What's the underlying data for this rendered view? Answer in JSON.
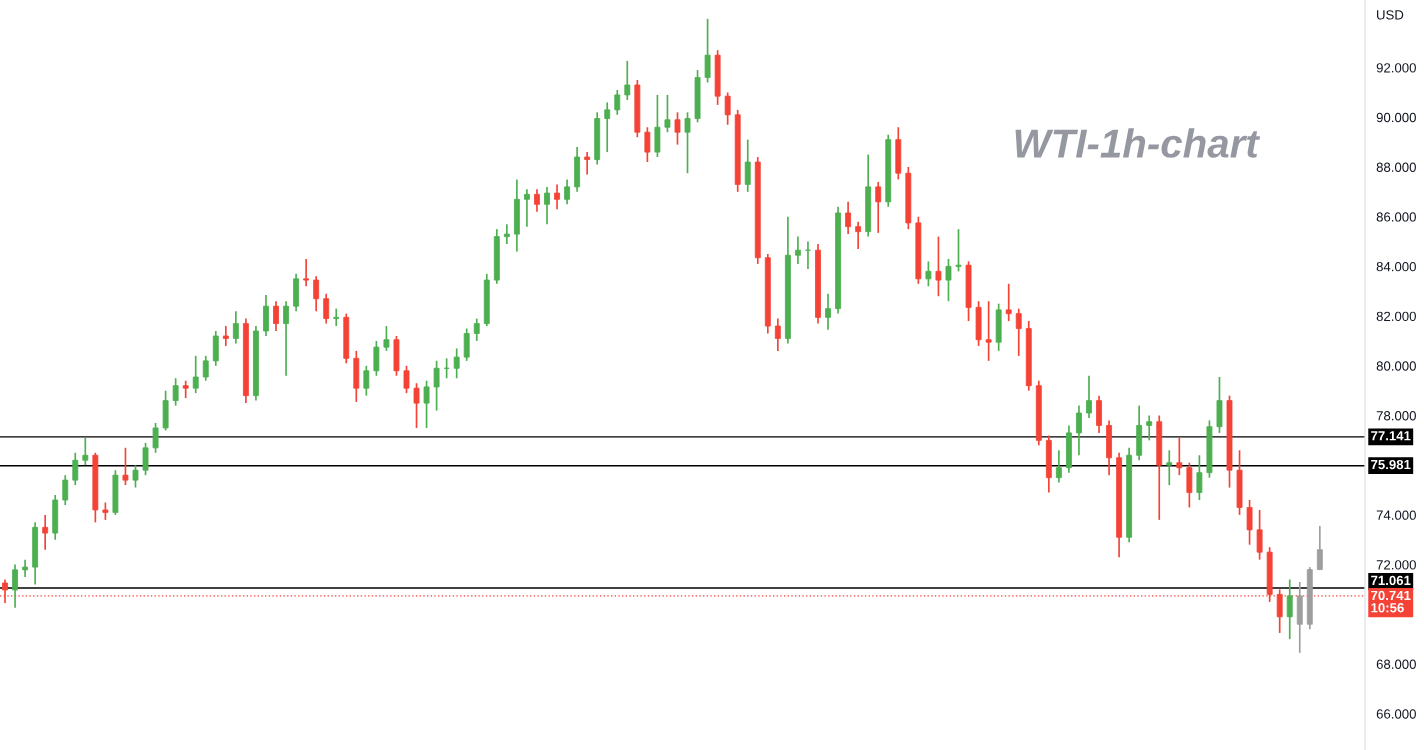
{
  "chart_data": {
    "type": "candlestick",
    "title": "WTI-1h-chart",
    "ylabel": "USD",
    "categories": [
      null,
      null,
      null,
      null,
      null,
      null,
      null,
      null,
      null,
      null,
      null,
      null,
      null,
      null,
      null,
      null,
      null,
      null,
      null,
      null,
      null,
      null,
      null,
      null,
      null,
      null,
      null,
      null,
      null,
      null,
      null,
      null,
      null,
      null,
      null,
      null,
      null,
      null,
      null,
      null,
      null,
      null,
      null,
      null,
      null,
      null,
      null,
      null,
      null,
      null,
      null,
      null,
      null,
      null,
      null,
      null,
      null,
      null,
      null,
      null,
      null,
      null,
      null,
      null,
      null,
      null,
      null,
      null,
      null,
      null,
      null,
      null,
      null,
      null,
      null,
      null,
      null,
      null,
      null,
      null,
      null,
      null,
      null,
      null,
      null,
      null,
      null,
      null,
      null,
      null,
      null,
      null,
      null,
      null,
      null,
      null,
      null,
      null,
      null,
      null,
      null,
      null,
      null,
      null,
      null,
      null,
      null,
      null,
      null,
      null,
      null,
      null,
      null,
      null,
      null,
      null,
      null,
      null,
      null,
      null,
      null,
      null,
      null,
      null,
      null,
      null,
      null,
      null,
      null,
      null,
      null,
      null,
      null,
      null,
      null,
      null
    ],
    "ohlc": [
      [
        71.26,
        71.4,
        70.46,
        70.98
      ],
      [
        70.98,
        72.0,
        70.26,
        71.79
      ],
      [
        71.79,
        72.2,
        71.5,
        71.9
      ],
      [
        71.9,
        73.7,
        71.2,
        73.5
      ],
      [
        73.5,
        74.0,
        72.6,
        73.27
      ],
      [
        73.27,
        74.8,
        73.0,
        74.6
      ],
      [
        74.6,
        75.6,
        74.4,
        75.4
      ],
      [
        75.4,
        76.5,
        75.2,
        76.2
      ],
      [
        76.2,
        77.1,
        76.0,
        76.4
      ],
      [
        76.4,
        76.5,
        73.7,
        74.2
      ],
      [
        74.2,
        74.5,
        73.8,
        74.1
      ],
      [
        74.1,
        75.8,
        74.0,
        75.6
      ],
      [
        75.6,
        76.7,
        75.2,
        75.4
      ],
      [
        75.4,
        76.0,
        75.1,
        75.8
      ],
      [
        75.8,
        76.9,
        75.6,
        76.7
      ],
      [
        76.7,
        77.7,
        76.5,
        77.5
      ],
      [
        77.5,
        79.0,
        77.4,
        78.6
      ],
      [
        78.6,
        79.5,
        78.4,
        79.2
      ],
      [
        79.2,
        79.4,
        78.7,
        79.1
      ],
      [
        79.1,
        80.4,
        78.9,
        79.55
      ],
      [
        79.55,
        80.4,
        79.4,
        80.2
      ],
      [
        80.2,
        81.4,
        80.0,
        81.2
      ],
      [
        81.2,
        81.6,
        80.8,
        81.1
      ],
      [
        81.1,
        82.2,
        80.9,
        81.7
      ],
      [
        81.7,
        81.9,
        78.5,
        78.8
      ],
      [
        78.8,
        81.6,
        78.6,
        81.4
      ],
      [
        81.4,
        82.85,
        81.2,
        82.4
      ],
      [
        82.4,
        82.6,
        81.4,
        81.7
      ],
      [
        81.7,
        82.6,
        79.6,
        82.4
      ],
      [
        82.4,
        83.7,
        82.2,
        83.5
      ],
      [
        83.5,
        84.3,
        83.2,
        83.45
      ],
      [
        83.45,
        83.6,
        82.2,
        82.7
      ],
      [
        82.7,
        82.9,
        81.7,
        81.9
      ],
      [
        81.9,
        82.3,
        81.6,
        81.95
      ],
      [
        81.95,
        82.1,
        80.1,
        80.3
      ],
      [
        80.3,
        80.6,
        78.55,
        79.1
      ],
      [
        79.1,
        80.0,
        78.8,
        79.8
      ],
      [
        79.8,
        81.0,
        79.6,
        80.75
      ],
      [
        80.75,
        81.6,
        80.6,
        81.05
      ],
      [
        81.05,
        81.2,
        79.6,
        79.8
      ],
      [
        79.8,
        80.0,
        78.9,
        79.1
      ],
      [
        79.1,
        79.3,
        77.5,
        78.5
      ],
      [
        78.5,
        79.4,
        77.5,
        79.15
      ],
      [
        79.15,
        80.2,
        78.2,
        79.9
      ],
      [
        79.9,
        80.3,
        79.5,
        79.9
      ],
      [
        79.9,
        80.7,
        79.5,
        80.35
      ],
      [
        80.35,
        81.5,
        80.2,
        81.3
      ],
      [
        81.3,
        81.9,
        81.0,
        81.7
      ],
      [
        81.7,
        83.7,
        81.6,
        83.45
      ],
      [
        83.45,
        85.5,
        83.3,
        85.2
      ],
      [
        85.2,
        85.7,
        84.9,
        85.3
      ],
      [
        85.3,
        87.5,
        84.6,
        86.7
      ],
      [
        86.7,
        87.1,
        85.6,
        86.9
      ],
      [
        86.9,
        87.1,
        86.2,
        86.5
      ],
      [
        86.5,
        87.2,
        85.7,
        86.95
      ],
      [
        86.95,
        87.3,
        86.3,
        86.7
      ],
      [
        86.7,
        87.5,
        86.5,
        87.2
      ],
      [
        87.2,
        88.8,
        87.0,
        88.4
      ],
      [
        88.4,
        88.6,
        87.7,
        88.3
      ],
      [
        88.3,
        90.2,
        88.1,
        89.95
      ],
      [
        89.95,
        90.6,
        88.6,
        90.3
      ],
      [
        90.3,
        91.1,
        90.1,
        90.9
      ],
      [
        90.9,
        92.27,
        90.7,
        91.3
      ],
      [
        91.3,
        91.5,
        89.2,
        89.4
      ],
      [
        89.4,
        89.6,
        88.2,
        88.6
      ],
      [
        88.6,
        90.9,
        88.4,
        89.6
      ],
      [
        89.6,
        90.9,
        89.4,
        89.9
      ],
      [
        89.9,
        90.2,
        88.9,
        89.4
      ],
      [
        89.4,
        90.2,
        87.75,
        89.95
      ],
      [
        89.95,
        91.9,
        89.8,
        91.6
      ],
      [
        91.6,
        93.96,
        91.4,
        92.5
      ],
      [
        92.5,
        92.7,
        90.5,
        90.85
      ],
      [
        90.85,
        91.0,
        89.7,
        90.1
      ],
      [
        90.1,
        90.3,
        87.0,
        87.3
      ],
      [
        87.3,
        89.1,
        87.0,
        88.2
      ],
      [
        88.2,
        88.4,
        84.1,
        84.35
      ],
      [
        84.35,
        84.5,
        81.3,
        81.6
      ],
      [
        81.6,
        81.9,
        80.6,
        81.1
      ],
      [
        81.1,
        86.0,
        80.9,
        84.45
      ],
      [
        84.45,
        85.2,
        84.1,
        84.65
      ],
      [
        84.65,
        85.0,
        83.9,
        84.65
      ],
      [
        84.65,
        84.9,
        81.7,
        81.95
      ],
      [
        81.95,
        82.9,
        81.45,
        82.3
      ],
      [
        82.3,
        86.4,
        82.1,
        86.15
      ],
      [
        86.15,
        86.6,
        85.3,
        85.6
      ],
      [
        85.6,
        85.8,
        84.7,
        85.4
      ],
      [
        85.4,
        88.5,
        85.2,
        87.2
      ],
      [
        87.2,
        87.4,
        85.35,
        86.6
      ],
      [
        86.6,
        89.3,
        86.4,
        89.1
      ],
      [
        89.1,
        89.6,
        87.5,
        87.75
      ],
      [
        87.75,
        88.0,
        85.5,
        85.75
      ],
      [
        85.75,
        86.0,
        83.3,
        83.5
      ],
      [
        83.5,
        84.2,
        83.2,
        83.8
      ],
      [
        83.8,
        85.2,
        82.8,
        83.45
      ],
      [
        83.45,
        84.3,
        82.6,
        84.0
      ],
      [
        84.0,
        85.5,
        83.8,
        84.05
      ],
      [
        84.05,
        84.2,
        81.8,
        82.35
      ],
      [
        82.35,
        82.6,
        80.8,
        81.05
      ],
      [
        81.05,
        82.6,
        80.2,
        80.95
      ],
      [
        80.95,
        82.5,
        80.6,
        82.25
      ],
      [
        82.25,
        83.3,
        81.8,
        82.1
      ],
      [
        82.1,
        82.3,
        80.4,
        81.5
      ],
      [
        81.5,
        81.8,
        79.0,
        79.2
      ],
      [
        79.2,
        79.4,
        76.8,
        77.0
      ],
      [
        77.0,
        77.2,
        74.9,
        75.5
      ],
      [
        75.5,
        76.6,
        75.3,
        75.9
      ],
      [
        75.9,
        77.6,
        75.7,
        77.3
      ],
      [
        77.3,
        78.4,
        76.4,
        78.1
      ],
      [
        78.1,
        79.6,
        77.9,
        78.6
      ],
      [
        78.6,
        78.8,
        77.3,
        77.6
      ],
      [
        77.6,
        77.8,
        75.6,
        76.3
      ],
      [
        76.3,
        76.5,
        72.3,
        73.1
      ],
      [
        73.1,
        76.7,
        72.9,
        76.4
      ],
      [
        76.4,
        78.4,
        76.2,
        77.6
      ],
      [
        77.6,
        78.0,
        77.0,
        77.75
      ],
      [
        77.75,
        78.0,
        73.8,
        76.0
      ],
      [
        76.0,
        76.6,
        75.2,
        76.1
      ],
      [
        76.1,
        77.1,
        75.6,
        75.9
      ],
      [
        75.9,
        76.1,
        74.3,
        74.9
      ],
      [
        74.9,
        76.4,
        74.6,
        75.7
      ],
      [
        75.7,
        77.8,
        75.5,
        77.55
      ],
      [
        77.55,
        79.55,
        77.3,
        78.6
      ],
      [
        78.6,
        78.8,
        75.1,
        75.8
      ],
      [
        75.8,
        76.6,
        74.0,
        74.3
      ],
      [
        74.3,
        74.6,
        72.8,
        73.4
      ],
      [
        73.4,
        74.2,
        72.2,
        72.5
      ],
      [
        72.5,
        72.7,
        70.5,
        70.8
      ],
      [
        70.8,
        71.0,
        69.25,
        69.9
      ],
      [
        69.9,
        71.4,
        69.0,
        70.741
      ],
      [
        70.741,
        71.3,
        68.45,
        69.6
      ],
      [
        69.6,
        71.9,
        69.4,
        71.8
      ],
      [
        71.8,
        73.55,
        71.8,
        72.6
      ],
      null,
      null,
      null,
      null
    ],
    "colors": [
      "#f44336",
      "#4caf50",
      "#4caf50",
      "#4caf50",
      "#f44336",
      "#4caf50",
      "#4caf50",
      "#4caf50",
      "#4caf50",
      "#f44336",
      "#f44336",
      "#4caf50",
      "#f44336",
      "#4caf50",
      "#4caf50",
      "#4caf50",
      "#4caf50",
      "#4caf50",
      "#f44336",
      "#4caf50",
      "#4caf50",
      "#4caf50",
      "#f44336",
      "#4caf50",
      "#f44336",
      "#4caf50",
      "#4caf50",
      "#f44336",
      "#4caf50",
      "#4caf50",
      "#f44336",
      "#f44336",
      "#f44336",
      "#4caf50",
      "#f44336",
      "#f44336",
      "#4caf50",
      "#4caf50",
      "#4caf50",
      "#f44336",
      "#f44336",
      "#f44336",
      "#4caf50",
      "#4caf50",
      "#4caf50",
      "#4caf50",
      "#4caf50",
      "#4caf50",
      "#4caf50",
      "#4caf50",
      "#4caf50",
      "#4caf50",
      "#4caf50",
      "#f44336",
      "#4caf50",
      "#f44336",
      "#4caf50",
      "#4caf50",
      "#f44336",
      "#4caf50",
      "#4caf50",
      "#4caf50",
      "#4caf50",
      "#f44336",
      "#f44336",
      "#4caf50",
      "#4caf50",
      "#f44336",
      "#4caf50",
      "#4caf50",
      "#4caf50",
      "#f44336",
      "#f44336",
      "#f44336",
      "#4caf50",
      "#f44336",
      "#f44336",
      "#f44336",
      "#4caf50",
      "#4caf50",
      "#4caf50",
      "#f44336",
      "#4caf50",
      "#4caf50",
      "#f44336",
      "#f44336",
      "#4caf50",
      "#f44336",
      "#4caf50",
      "#f44336",
      "#f44336",
      "#f44336",
      "#4caf50",
      "#f44336",
      "#4caf50",
      "#4caf50",
      "#f44336",
      "#f44336",
      "#f44336",
      "#4caf50",
      "#f44336",
      "#f44336",
      "#f44336",
      "#f44336",
      "#f44336",
      "#4caf50",
      "#4caf50",
      "#4caf50",
      "#4caf50",
      "#f44336",
      "#f44336",
      "#f44336",
      "#4caf50",
      "#4caf50",
      "#4caf50",
      "#f44336",
      "#4caf50",
      "#f44336",
      "#f44336",
      "#4caf50",
      "#4caf50",
      "#4caf50",
      "#f44336",
      "#f44336",
      "#f44336",
      "#f44336",
      "#f44336",
      "#f44336",
      "#4caf50",
      "#9e9e9e",
      "#9e9e9e",
      "#9e9e9e",
      null,
      null,
      null,
      null
    ],
    "ylim": [
      64.54,
      94.72
    ],
    "yticks": [
      {
        "value": 66,
        "label": "66.000"
      },
      {
        "value": 68,
        "label": "68.000"
      },
      {
        "value": 72,
        "label": "72.000"
      },
      {
        "value": 74,
        "label": "74.000"
      },
      {
        "value": 78,
        "label": "78.000"
      },
      {
        "value": 80,
        "label": "80.000"
      },
      {
        "value": 82,
        "label": "82.000"
      },
      {
        "value": 84,
        "label": "84.000"
      },
      {
        "value": 86,
        "label": "86.000"
      },
      {
        "value": 88,
        "label": "88.000"
      },
      {
        "value": 90,
        "label": "90.000"
      },
      {
        "value": 92,
        "label": "92.000"
      }
    ],
    "ref_lines": [
      {
        "axis": "y",
        "value": 77.141,
        "label": "77.141",
        "color": "#000000"
      },
      {
        "axis": "y",
        "value": 75.981,
        "label": "75.981",
        "color": "#000000"
      },
      {
        "axis": "y",
        "value": 71.061,
        "label": "71.061",
        "color": "#000000"
      },
      {
        "axis": "y",
        "value": 70.741,
        "label": "70.741\n10:56",
        "color": "#f44336",
        "line_style": "dotted"
      }
    ],
    "tick_labels": "y"
  }
}
